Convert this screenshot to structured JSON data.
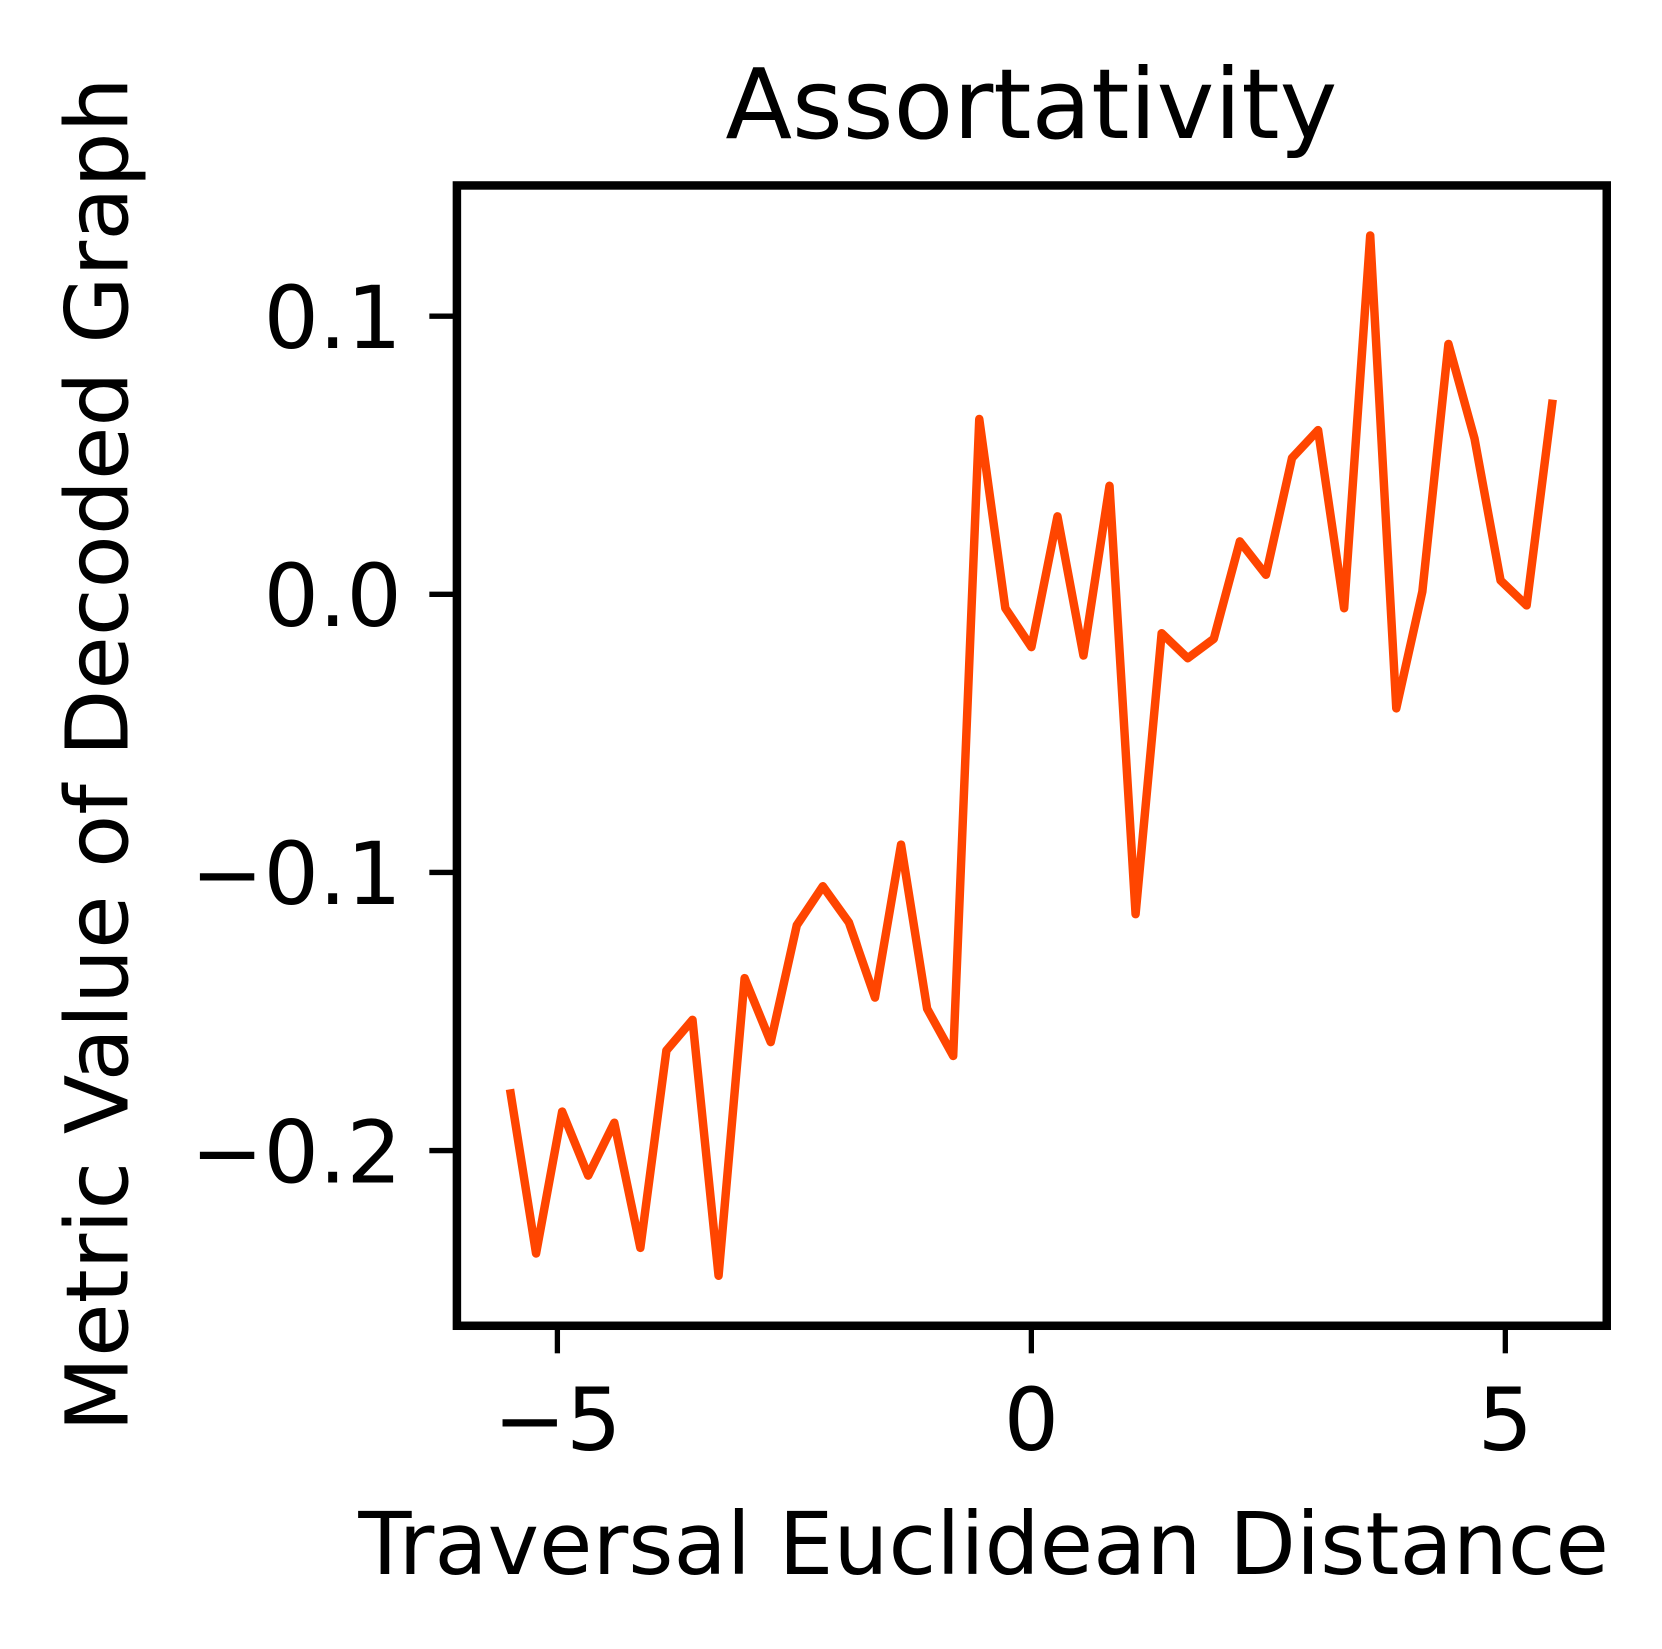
{
  "chart_data": {
    "type": "line",
    "title": "Assortativity",
    "xlabel": "Traversal Euclidean Distance",
    "ylabel": "Metric Value of Decoded Graph",
    "xlim": [
      -6.06,
      6.07
    ],
    "ylim": [
      -0.263,
      0.147
    ],
    "xticks": [
      -5,
      0,
      5
    ],
    "xtick_labels": [
      "−5",
      "0",
      "5"
    ],
    "yticks": [
      0.1,
      0.0,
      -0.1,
      -0.2
    ],
    "ytick_labels": [
      "0.1",
      "0.0",
      "−0.1",
      "−0.2"
    ],
    "grid": false,
    "line_color": "#ff4500",
    "series": [
      {
        "x": [
          -5.5,
          -5.225,
          -4.95,
          -4.675,
          -4.4,
          -4.125,
          -3.85,
          -3.575,
          -3.3,
          -3.025,
          -2.75,
          -2.475,
          -2.2,
          -1.925,
          -1.65,
          -1.375,
          -1.1,
          -0.825,
          -0.55,
          -0.275,
          0,
          0.275,
          0.55,
          0.825,
          1.1,
          1.375,
          1.65,
          1.925,
          2.2,
          2.475,
          2.75,
          3.025,
          3.3,
          3.575,
          3.85,
          4.125,
          4.4,
          4.675,
          4.95,
          5.225,
          5.5
        ],
        "y": [
          -0.178,
          -0.237,
          -0.186,
          -0.209,
          -0.19,
          -0.235,
          -0.164,
          -0.153,
          -0.245,
          -0.138,
          -0.161,
          -0.119,
          -0.105,
          -0.118,
          -0.145,
          -0.09,
          -0.149,
          -0.166,
          0.063,
          -0.005,
          -0.019,
          0.028,
          -0.022,
          0.039,
          -0.115,
          -0.014,
          -0.023,
          -0.016,
          0.019,
          0.007,
          0.049,
          0.059,
          -0.005,
          0.129,
          -0.041,
          0.001,
          0.09,
          0.056,
          0.005,
          -0.004,
          0.07
        ]
      }
    ]
  }
}
